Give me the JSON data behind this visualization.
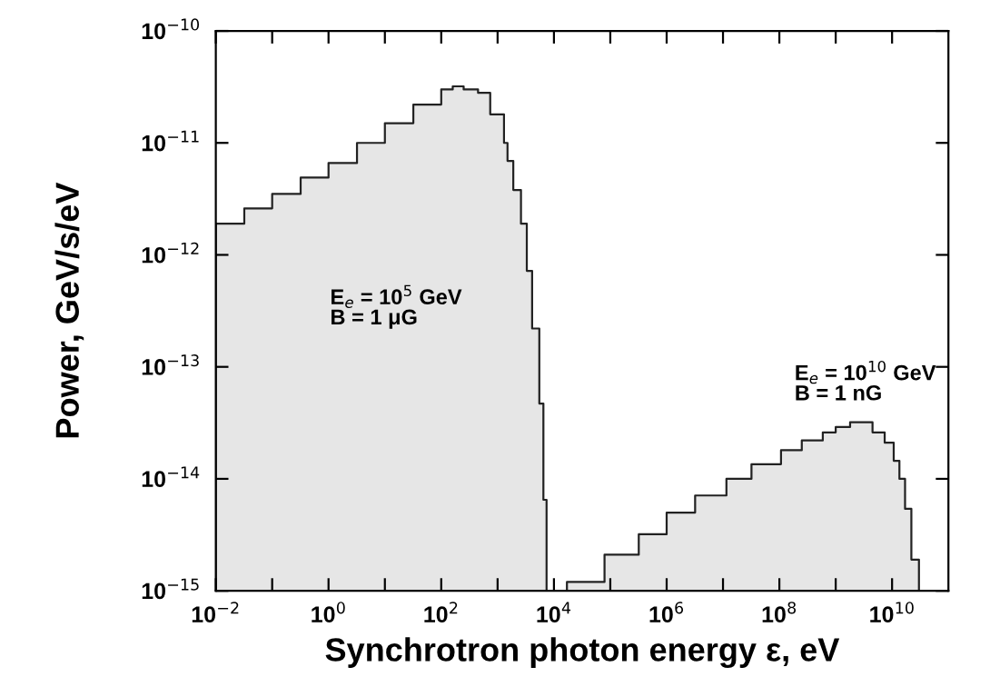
{
  "chart_data": {
    "type": "area",
    "xlabel": "Synchrotron photon energy ε, eV",
    "ylabel": "Power, GeV/s/eV",
    "log": "xy",
    "grid": false,
    "legend": false,
    "xlim": [
      0.01,
      100000000000.0
    ],
    "ylim": [
      1e-15,
      1e-10
    ],
    "xticks": [
      {
        "value": 0.01,
        "label": "10$^{−2}$"
      },
      {
        "value": 0.1,
        "label": null
      },
      {
        "value": 1,
        "label": "10$^{0}$"
      },
      {
        "value": 10,
        "label": null
      },
      {
        "value": 100,
        "label": "10$^{2}$"
      },
      {
        "value": 1000,
        "label": null
      },
      {
        "value": 10000,
        "label": "10$^{4}$"
      },
      {
        "value": 100000,
        "label": null
      },
      {
        "value": 1000000,
        "label": "10$^{6}$"
      },
      {
        "value": 10000000,
        "label": null
      },
      {
        "value": 100000000,
        "label": "10$^{8}$"
      },
      {
        "value": 1000000000,
        "label": null
      },
      {
        "value": 10000000000,
        "label": "10$^{10}$"
      }
    ],
    "yticks": [
      {
        "value": 1e-15,
        "label": "10$^{−15}$"
      },
      {
        "value": 1e-14,
        "label": "10$^{−14}$"
      },
      {
        "value": 1e-13,
        "label": "10$^{−13}$"
      },
      {
        "value": 1e-12,
        "label": "10$^{−12}$"
      },
      {
        "value": 1e-11,
        "label": "10$^{−11}$"
      },
      {
        "value": 1e-10,
        "label": "10$^{−10}$"
      }
    ],
    "series": [
      {
        "color": "#e6e6e6",
        "x": [
          0.01,
          0.032,
          0.1,
          0.32,
          1,
          3.2,
          10,
          32,
          100,
          160,
          250,
          450,
          740,
          1300,
          1500,
          1900,
          2600,
          3300,
          4100,
          5500,
          6500,
          7400
        ],
        "values": [
          1.9e-12,
          2.6e-12,
          3.5e-12,
          4.9e-12,
          6.6e-12,
          1e-11,
          1.5e-11,
          2.2e-11,
          3e-11,
          3.2e-11,
          3e-11,
          2.8e-11,
          1.8e-11,
          1e-11,
          6.9e-12,
          3.8e-12,
          1.9e-12,
          7.2e-13,
          2.2e-13,
          4.7e-14,
          6.5e-15,
          1e-15
        ]
      },
      {
        "color": "#e6e6e6",
        "x": [
          17000,
          79000,
          320000,
          1000000,
          3200000,
          11500000,
          32000000,
          107000000,
          250000000,
          590000000,
          1000000000,
          1800000000,
          4500000000,
          7400000000,
          10700000000,
          13500000000,
          17000000000,
          22000000000,
          30000000000
        ],
        "values": [
          1.2e-15,
          2.1e-15,
          3.2e-15,
          5e-15,
          7.1e-15,
          1e-14,
          1.35e-14,
          1.8e-14,
          2.2e-14,
          2.6e-14,
          2.9e-14,
          3.2e-14,
          2.6e-14,
          2.1e-14,
          1.45e-14,
          1e-14,
          5.4e-15,
          1.9e-15,
          1e-15
        ]
      }
    ],
    "annotations": [
      "E$_{e}$ = 10$^{5}$ GeV\nB = 1 μG",
      "E$_{e}$ = 10$^{10}$ GeV\nB = 1 nG"
    ]
  }
}
